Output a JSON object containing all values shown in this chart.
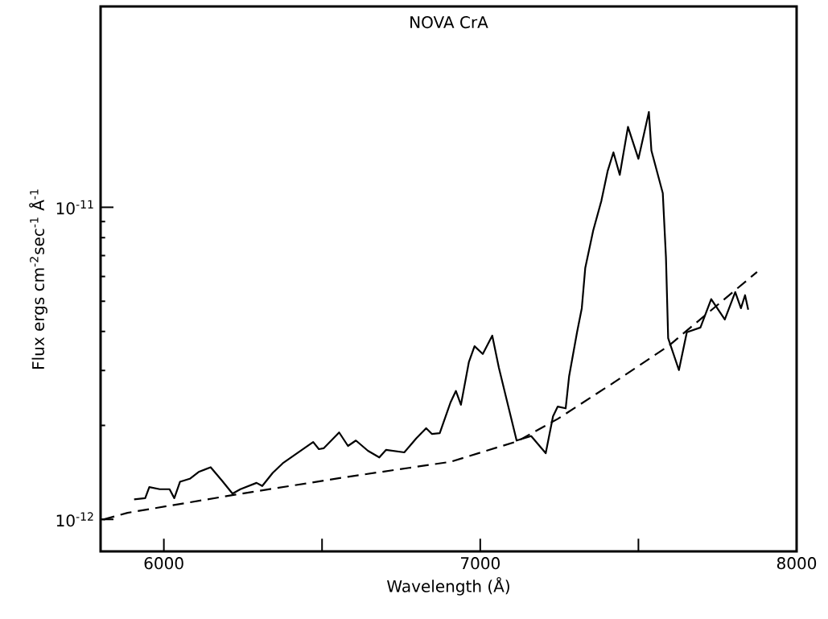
{
  "chart_data": {
    "type": "line",
    "title": "NOVA CrA",
    "xlabel": "Wavelength (Å)",
    "ylabel": "Flux ergs cm$^{-2}$sec$^{-1}$ Å$^{-1}$",
    "log": "y",
    "xlim": [
      5800,
      8000
    ],
    "ylim": [
      7.9e-13,
      4.4e-11
    ],
    "xticks": [
      6000,
      {
        "value": 6500,
        "label": null
      },
      7000,
      {
        "value": 7500,
        "label": null
      },
      8000
    ],
    "yticks": [
      {
        "value": 1e-12,
        "label": "10$^{-12}$"
      },
      {
        "value": 1e-11,
        "label": "10$^{-11}$"
      }
    ],
    "grid": false,
    "marker": "none",
    "series": [
      {
        "color": "#000000",
        "line_style": "solid",
        "x": [
          5906,
          5941,
          5954,
          5987,
          6018,
          6033,
          6051,
          6082,
          6110,
          6148,
          6184,
          6217,
          6242,
          6293,
          6311,
          6344,
          6378,
          6472,
          6490,
          6505,
          6554,
          6582,
          6607,
          6645,
          6681,
          6702,
          6760,
          6798,
          6829,
          6847,
          6872,
          6906,
          6923,
          6939,
          6964,
          6982,
          7008,
          7038,
          7059,
          7115,
          7161,
          7207,
          7230,
          7245,
          7270,
          7281,
          7306,
          7321,
          7332,
          7357,
          7383,
          7403,
          7421,
          7441,
          7467,
          7500,
          7533,
          7541,
          7577,
          7587,
          7594,
          7628,
          7653,
          7696,
          7730,
          7773,
          7806,
          7824,
          7837,
          7847
        ],
        "values": [
          1.16e-12,
          1.17e-12,
          1.27e-12,
          1.25e-12,
          1.25e-12,
          1.17e-12,
          1.32e-12,
          1.35e-12,
          1.42e-12,
          1.47e-12,
          1.33e-12,
          1.21e-12,
          1.25e-12,
          1.31e-12,
          1.28e-12,
          1.41e-12,
          1.52e-12,
          1.77e-12,
          1.68e-12,
          1.69e-12,
          1.9e-12,
          1.72e-12,
          1.79e-12,
          1.66e-12,
          1.58e-12,
          1.67e-12,
          1.64e-12,
          1.82e-12,
          1.96e-12,
          1.88e-12,
          1.89e-12,
          2.37e-12,
          2.58e-12,
          2.33e-12,
          3.19e-12,
          3.59e-12,
          3.39e-12,
          3.88e-12,
          3.06e-12,
          1.79e-12,
          1.85e-12,
          1.63e-12,
          2.14e-12,
          2.3e-12,
          2.27e-12,
          2.88e-12,
          3.98e-12,
          4.75e-12,
          6.4e-12,
          8.42e-12,
          1.05e-11,
          1.31e-11,
          1.5e-11,
          1.27e-11,
          1.81e-11,
          1.43e-11,
          2.02e-11,
          1.52e-11,
          1.11e-11,
          6.92e-12,
          3.81e-12,
          3.01e-12,
          3.98e-12,
          4.12e-12,
          5.08e-12,
          4.37e-12,
          5.35e-12,
          4.75e-12,
          5.23e-12,
          4.7e-12
        ]
      },
      {
        "color": "#000000",
        "line_style": "dashed",
        "x": [
          5809,
          5885,
          6224,
          6582,
          6906,
          7117,
          7245,
          7416,
          7594,
          7875
        ],
        "values": [
          1e-12,
          1.05e-12,
          1.2e-12,
          1.37e-12,
          1.53e-12,
          1.78e-12,
          2.1e-12,
          2.72e-12,
          3.59e-12,
          6.21e-12
        ]
      }
    ]
  }
}
